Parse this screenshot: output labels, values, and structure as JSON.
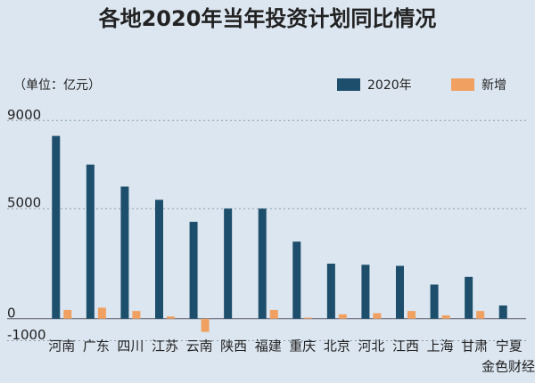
{
  "chart_data": {
    "type": "bar",
    "title": "各地2020年当年投资计划同比情况",
    "unit_note": "（单位：亿元）",
    "watermark": "金色财经",
    "categories": [
      "河南",
      "广东",
      "四川",
      "江苏",
      "云南",
      "陕西",
      "福建",
      "重庆",
      "北京",
      "河北",
      "江西",
      "上海",
      "甘肃",
      "宁夏"
    ],
    "series": [
      {
        "name": "2020年",
        "color": "#1d4e6b",
        "values": [
          8300,
          7000,
          6000,
          5400,
          4400,
          5000,
          5000,
          3500,
          2500,
          2450,
          2400,
          1550,
          1900,
          600
        ]
      },
      {
        "name": "新增",
        "color": "#f0a060",
        "values": [
          400,
          500,
          350,
          100,
          -600,
          0,
          400,
          50,
          200,
          250,
          350,
          150,
          350,
          0
        ]
      }
    ],
    "ylim": [
      -1100,
      9700
    ],
    "yticks": [
      9000,
      5000,
      0,
      -1000
    ],
    "grid": true,
    "legend": "top-right"
  }
}
